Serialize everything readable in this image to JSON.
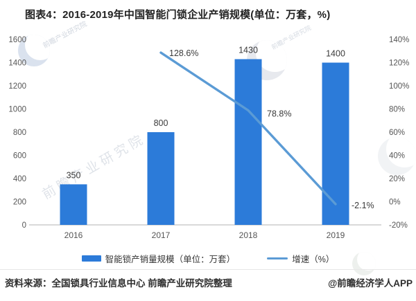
{
  "title": "图表4：2016-2019年中国智能门锁企业产销规模(单位：万套，%)",
  "watermark_text": "前瞻产业研究院",
  "footer": {
    "source": "资料来源：全国锁具行业信息中心 前瞻产业研究院整理",
    "credit": "@前瞻经济学人APP"
  },
  "colors": {
    "bar": "#2c7bd9",
    "line": "#5b9bd5",
    "axis_text": "#555555",
    "value_text": "#3a3a3a",
    "baseline": "#d9d9d9"
  },
  "chart_data": {
    "type": "bar",
    "subtype": "bar+line combo, dual axis",
    "categories": [
      "2016",
      "2017",
      "2018",
      "2019"
    ],
    "series": [
      {
        "name": "智能锁产销量规模（单位：万套）",
        "type": "bar",
        "axis": "left",
        "values": [
          350,
          800,
          1430,
          1400
        ],
        "value_labels": [
          "350",
          "800",
          "1430",
          "1400"
        ],
        "color": "#2c7bd9"
      },
      {
        "name": "增速（%）",
        "type": "line",
        "axis": "right",
        "values": [
          null,
          128.6,
          78.8,
          -2.1
        ],
        "point_labels": [
          null,
          "128.6%",
          "78.8%",
          "-2.1%"
        ],
        "color": "#5b9bd5"
      }
    ],
    "left_axis": {
      "min": 0,
      "max": 1600,
      "step": 200,
      "ticks": [
        "1600",
        "1400",
        "1200",
        "1000",
        "800",
        "600",
        "400",
        "200",
        "0"
      ]
    },
    "right_axis": {
      "min": -20,
      "max": 140,
      "step": 20,
      "ticks": [
        "140%",
        "120%",
        "100%",
        "80%",
        "60%",
        "40%",
        "20%",
        "0%",
        "-20%"
      ]
    },
    "grid": "off",
    "legend_position": "bottom-center",
    "legend": [
      {
        "label": "智能锁产销量规模（单位：万套）",
        "swatch": "bar",
        "color": "#2c7bd9"
      },
      {
        "label": "增速（%）",
        "swatch": "line",
        "color": "#5b9bd5"
      }
    ]
  }
}
